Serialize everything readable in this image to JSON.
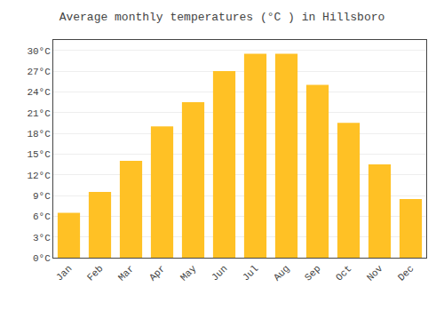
{
  "chart_data": {
    "type": "bar",
    "title": "Average monthly temperatures (°C ) in Hillsboro",
    "categories": [
      "Jan",
      "Feb",
      "Mar",
      "Apr",
      "May",
      "Jun",
      "Jul",
      "Aug",
      "Sep",
      "Oct",
      "Nov",
      "Dec"
    ],
    "values": [
      6.5,
      9.5,
      14.0,
      19.0,
      22.5,
      27.0,
      29.5,
      29.5,
      25.0,
      19.5,
      13.5,
      8.5
    ],
    "color": "#FFC125",
    "ylim": [
      0,
      31.5
    ],
    "yticks": [
      {
        "value": 0,
        "label": "0°C"
      },
      {
        "value": 3,
        "label": "3°C"
      },
      {
        "value": 6,
        "label": "6°C"
      },
      {
        "value": 9,
        "label": "9°C"
      },
      {
        "value": 12,
        "label": "12°C"
      },
      {
        "value": 15,
        "label": "15°C"
      },
      {
        "value": 18,
        "label": "18°C"
      },
      {
        "value": 21,
        "label": "21°C"
      },
      {
        "value": 24,
        "label": "24°C"
      },
      {
        "value": 27,
        "label": "27°C"
      },
      {
        "value": 30,
        "label": "30°C"
      }
    ],
    "grid": true
  }
}
